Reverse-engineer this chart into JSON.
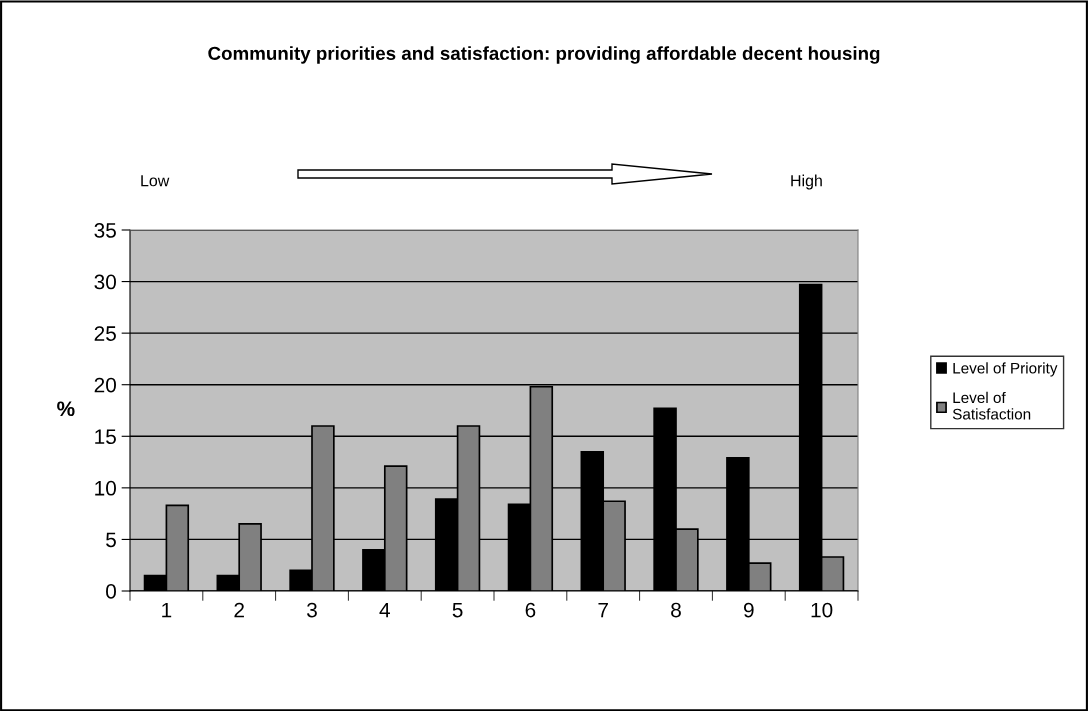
{
  "chart_data": {
    "type": "bar",
    "title": "Community priorities and satisfaction: providing affordable decent housing",
    "ylabel": "%",
    "annotations": [
      "Low",
      "High"
    ],
    "categories": [
      "1",
      "2",
      "3",
      "4",
      "5",
      "6",
      "7",
      "8",
      "9",
      "10"
    ],
    "series": [
      {
        "name": "Level of Priority",
        "color": "#000000",
        "values": [
          1.5,
          1.5,
          2.0,
          4.0,
          8.9,
          8.4,
          13.5,
          17.7,
          12.9,
          29.7
        ]
      },
      {
        "name": "Level of\nSatisfaction",
        "color": "#808080",
        "values": [
          8.3,
          6.5,
          16.0,
          12.1,
          16.0,
          19.8,
          8.7,
          6.0,
          2.7,
          3.3
        ]
      }
    ],
    "ylim": [
      0,
      35
    ],
    "yticks": [
      0,
      5,
      10,
      15,
      20,
      25,
      30,
      35
    ],
    "grid": "y",
    "legend": "right"
  }
}
